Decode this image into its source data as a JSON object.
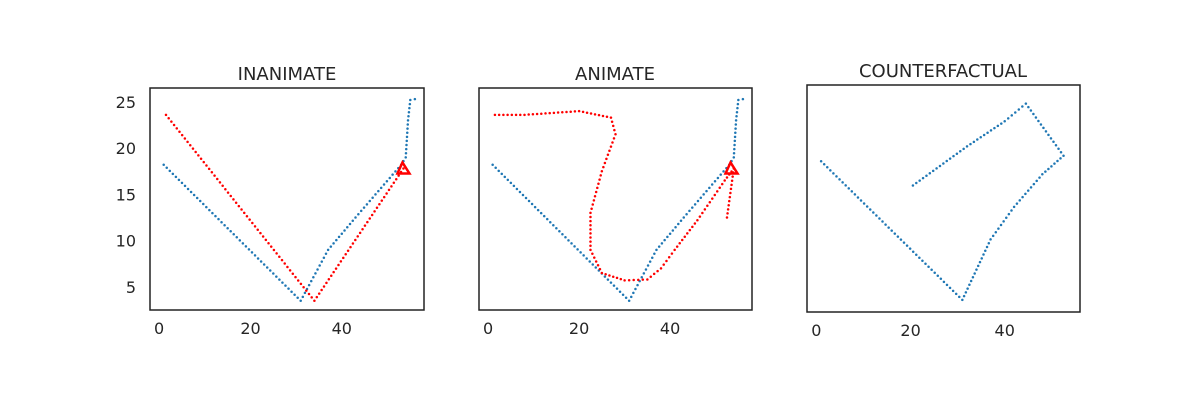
{
  "chart_data": [
    {
      "type": "scatter",
      "title": "INANIMATE",
      "xlim": [
        -2,
        58
      ],
      "ylim": [
        2.5,
        26.5
      ],
      "xticks": [
        0,
        20,
        40
      ],
      "yticks": [
        5,
        10,
        15,
        20,
        25
      ],
      "show_yticks": true,
      "grid": false,
      "series": [
        {
          "color": "#1f77b4",
          "style": "dotted",
          "anchors": [
            [
              1,
              18.2
            ],
            [
              31,
              3.5
            ],
            [
              37,
              9
            ],
            [
              43,
              12.5
            ],
            [
              53,
              18.2
            ],
            [
              54,
              19
            ],
            [
              54.5,
              23
            ],
            [
              55,
              25.2
            ],
            [
              56,
              25.3
            ]
          ]
        },
        {
          "color": "#ff0000",
          "style": "dotted",
          "anchors": [
            [
              1.5,
              23.6
            ],
            [
              34,
              3.5
            ],
            [
              53.5,
              17.8
            ]
          ]
        }
      ],
      "markers": [
        {
          "type": "triangle",
          "x": 53.5,
          "y": 17.8,
          "color": "#ff0000"
        }
      ]
    },
    {
      "type": "scatter",
      "title": "ANIMATE",
      "xlim": [
        -2,
        58
      ],
      "ylim": [
        2.5,
        26.5
      ],
      "xticks": [
        0,
        20,
        40
      ],
      "yticks": [
        5,
        10,
        15,
        20,
        25
      ],
      "show_yticks": false,
      "grid": false,
      "series": [
        {
          "color": "#1f77b4",
          "style": "dotted",
          "anchors": [
            [
              1,
              18.2
            ],
            [
              31,
              3.5
            ],
            [
              37,
              9
            ],
            [
              43,
              12.5
            ],
            [
              53,
              18.2
            ],
            [
              54,
              19
            ],
            [
              54.5,
              23
            ],
            [
              55,
              25.2
            ],
            [
              56,
              25.3
            ]
          ]
        },
        {
          "color": "#ff0000",
          "style": "dotted",
          "anchors": [
            [
              1.5,
              23.6
            ],
            [
              8,
              23.6
            ],
            [
              20,
              24
            ],
            [
              27,
              23.3
            ],
            [
              28,
              21.5
            ],
            [
              25,
              17.5
            ],
            [
              22.5,
              13
            ],
            [
              22.5,
              9
            ],
            [
              25,
              6.5
            ],
            [
              30,
              5.7
            ],
            [
              35,
              5.8
            ],
            [
              38,
              7
            ],
            [
              41,
              9
            ],
            [
              46,
              12.2
            ],
            [
              52,
              16.5
            ],
            [
              54,
              17.8
            ],
            [
              52.5,
              12.5
            ]
          ]
        }
      ],
      "markers": [
        {
          "type": "triangle",
          "x": 53.5,
          "y": 17.8,
          "color": "#ff0000"
        }
      ]
    },
    {
      "type": "scatter",
      "title": "COUNTERFACTUAL",
      "xlim": [
        -2,
        56
      ],
      "ylim": [
        2.2,
        26.6
      ],
      "xticks": [
        0,
        20,
        40
      ],
      "yticks": [],
      "show_yticks": false,
      "grid": false,
      "series": [
        {
          "color": "#1f77b4",
          "style": "dotted",
          "anchors": [
            [
              1,
              18.4
            ],
            [
              31,
              3.5
            ],
            [
              37,
              10
            ],
            [
              42,
              13.5
            ],
            [
              48,
              17
            ],
            [
              52.5,
              19
            ],
            [
              44.5,
              24.6
            ],
            [
              40,
              22.7
            ],
            [
              32,
              20
            ],
            [
              20.5,
              15.8
            ]
          ]
        }
      ],
      "markers": []
    }
  ]
}
